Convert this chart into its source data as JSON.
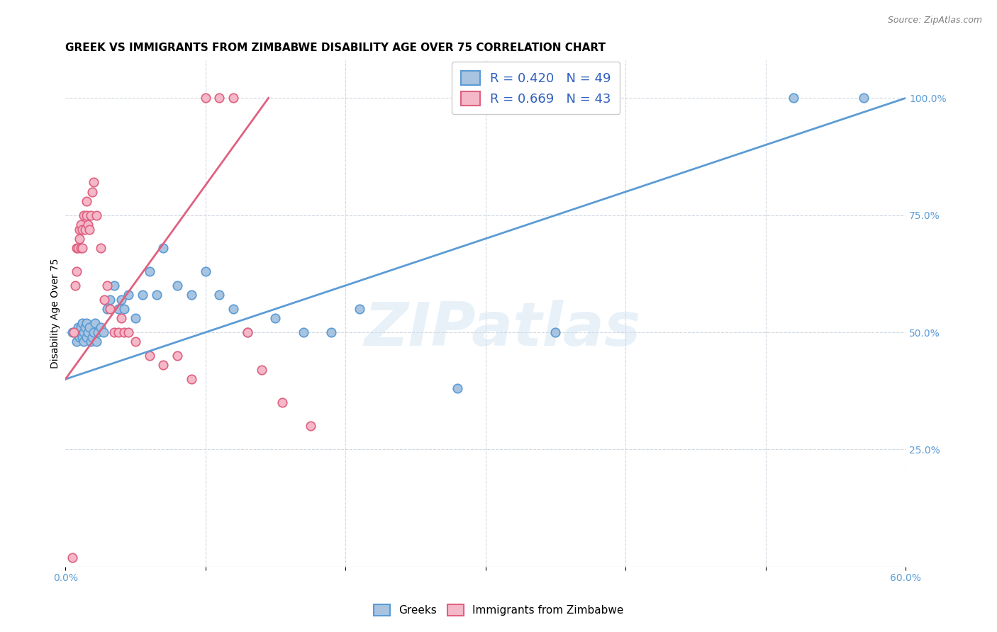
{
  "title": "GREEK VS IMMIGRANTS FROM ZIMBABWE DISABILITY AGE OVER 75 CORRELATION CHART",
  "source": "Source: ZipAtlas.com",
  "ylabel": "Disability Age Over 75",
  "xlim": [
    0.0,
    0.6
  ],
  "ylim": [
    0.0,
    1.08
  ],
  "yticks_right": [
    0.25,
    0.5,
    0.75,
    1.0
  ],
  "yticklabels_right": [
    "25.0%",
    "50.0%",
    "75.0%",
    "100.0%"
  ],
  "greek_color": "#a8c4e0",
  "greek_edge_color": "#5b9bd5",
  "zimbabwe_color": "#f4b8c8",
  "zimbabwe_edge_color": "#e06080",
  "greek_line_color": "#5b9bd5",
  "zimbabwe_line_color": "#e06080",
  "greek_R": 0.42,
  "greek_N": 49,
  "zimbabwe_R": 0.669,
  "zimbabwe_N": 43,
  "watermark_text": "ZIPatlas",
  "background_color": "#ffffff",
  "grid_color": "#d0d8e0",
  "greek_points_x": [
    0.005,
    0.008,
    0.009,
    0.01,
    0.01,
    0.011,
    0.012,
    0.012,
    0.013,
    0.013,
    0.014,
    0.015,
    0.015,
    0.016,
    0.017,
    0.018,
    0.019,
    0.02,
    0.021,
    0.022,
    0.023,
    0.025,
    0.027,
    0.03,
    0.032,
    0.035,
    0.038,
    0.04,
    0.042,
    0.045,
    0.05,
    0.055,
    0.06,
    0.065,
    0.07,
    0.08,
    0.09,
    0.1,
    0.11,
    0.12,
    0.13,
    0.15,
    0.17,
    0.19,
    0.21,
    0.28,
    0.35,
    0.52,
    0.57
  ],
  "greek_points_y": [
    0.5,
    0.48,
    0.51,
    0.49,
    0.5,
    0.51,
    0.52,
    0.49,
    0.48,
    0.5,
    0.51,
    0.52,
    0.49,
    0.5,
    0.51,
    0.48,
    0.49,
    0.5,
    0.52,
    0.48,
    0.5,
    0.51,
    0.5,
    0.55,
    0.57,
    0.6,
    0.55,
    0.57,
    0.55,
    0.58,
    0.53,
    0.58,
    0.63,
    0.58,
    0.68,
    0.6,
    0.58,
    0.63,
    0.58,
    0.55,
    0.5,
    0.53,
    0.5,
    0.5,
    0.55,
    0.38,
    0.5,
    1.0,
    1.0
  ],
  "zimbabwe_points_x": [
    0.005,
    0.006,
    0.007,
    0.008,
    0.008,
    0.009,
    0.01,
    0.01,
    0.011,
    0.011,
    0.012,
    0.012,
    0.013,
    0.014,
    0.015,
    0.015,
    0.016,
    0.017,
    0.018,
    0.019,
    0.02,
    0.022,
    0.025,
    0.028,
    0.03,
    0.032,
    0.035,
    0.038,
    0.04,
    0.042,
    0.045,
    0.05,
    0.06,
    0.07,
    0.08,
    0.09,
    0.1,
    0.11,
    0.12,
    0.13,
    0.14,
    0.155,
    0.175
  ],
  "zimbabwe_points_y": [
    0.02,
    0.5,
    0.6,
    0.63,
    0.68,
    0.68,
    0.7,
    0.72,
    0.68,
    0.73,
    0.68,
    0.72,
    0.75,
    0.72,
    0.75,
    0.78,
    0.73,
    0.72,
    0.75,
    0.8,
    0.82,
    0.75,
    0.68,
    0.57,
    0.6,
    0.55,
    0.5,
    0.5,
    0.53,
    0.5,
    0.5,
    0.48,
    0.45,
    0.43,
    0.45,
    0.4,
    1.0,
    1.0,
    1.0,
    0.5,
    0.42,
    0.35,
    0.3
  ],
  "greek_line_x": [
    0.0,
    0.6
  ],
  "greek_line_y": [
    0.4,
    1.0
  ],
  "zimbabwe_line_x": [
    0.0,
    0.145
  ],
  "zimbabwe_line_y": [
    0.4,
    1.0
  ],
  "title_fontsize": 11,
  "axis_fontsize": 10,
  "tick_fontsize": 10,
  "legend_fontsize": 13,
  "marker_size": 9,
  "marker_linewidth": 1.2,
  "line_width": 2.0
}
